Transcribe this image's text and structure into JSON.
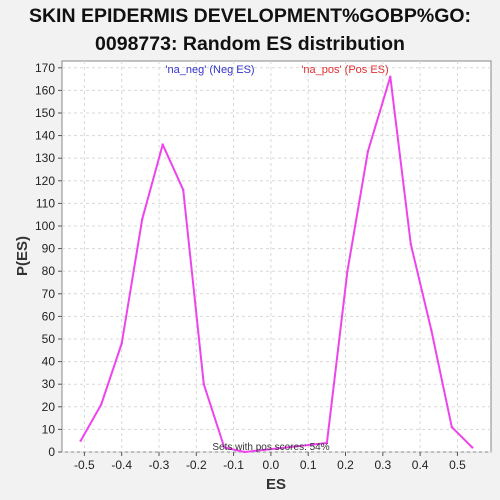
{
  "chart_data": {
    "type": "line",
    "title_line1": "SKIN EPIDERMIS DEVELOPMENT%GOBP%GO:",
    "title_line2": "0098773: Random ES distribution",
    "xlabel": "ES",
    "ylabel": "P(ES)",
    "xlim": [
      -0.56,
      0.59
    ],
    "ylim": [
      0,
      173
    ],
    "x_ticks": [
      "-0.5",
      "-0.4",
      "-0.3",
      "-0.2",
      "-0.1",
      "0.0",
      "0.1",
      "0.2",
      "0.3",
      "0.4",
      "0.5"
    ],
    "x_tick_values": [
      -0.5,
      -0.4,
      -0.3,
      -0.2,
      -0.1,
      0.0,
      0.1,
      0.2,
      0.3,
      0.4,
      0.5
    ],
    "y_ticks": [
      0,
      10,
      20,
      30,
      40,
      50,
      60,
      70,
      80,
      90,
      100,
      110,
      120,
      130,
      140,
      150,
      160,
      170
    ],
    "grid": true,
    "legend": [
      {
        "label": "'na_neg' (Neg ES)",
        "color": "#3333cc"
      },
      {
        "label": "'na_pos' (Pos ES)",
        "color": "#e03030"
      }
    ],
    "annotation": "Sets with pos scores: 54%",
    "series": [
      {
        "color": "#ee44ee",
        "points": [
          [
            -0.51,
            5
          ],
          [
            -0.455,
            21
          ],
          [
            -0.4,
            48
          ],
          [
            -0.345,
            103
          ],
          [
            -0.29,
            136
          ],
          [
            -0.235,
            116
          ],
          [
            -0.18,
            30
          ],
          [
            -0.125,
            2
          ],
          [
            -0.07,
            0
          ],
          [
            0.15,
            4
          ],
          [
            0.205,
            80
          ],
          [
            0.26,
            133
          ],
          [
            0.32,
            166
          ],
          [
            0.375,
            92
          ],
          [
            0.43,
            54
          ],
          [
            0.485,
            11
          ],
          [
            0.54,
            2
          ]
        ]
      }
    ]
  }
}
